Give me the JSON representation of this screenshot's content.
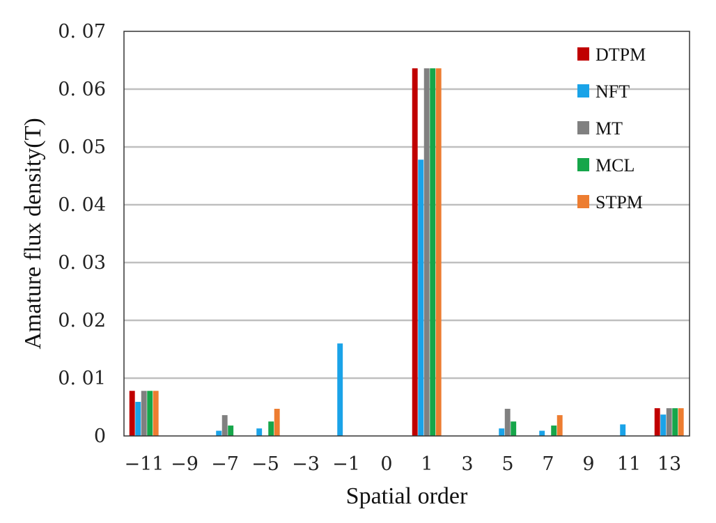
{
  "chart_data": {
    "type": "bar",
    "title": "",
    "xlabel": "Spatial order",
    "ylabel": "Amature flux density(T)",
    "categories": [
      "−11",
      "−9",
      "−7",
      "−5",
      "−3",
      "−1",
      "0",
      "1",
      "3",
      "5",
      "7",
      "9",
      "11",
      "13"
    ],
    "ylim": [
      0,
      0.07
    ],
    "yticks": [
      "0",
      "0. 01",
      "0. 02",
      "0. 03",
      "0. 04",
      "0. 05",
      "0. 06",
      "0. 07"
    ],
    "ytick_values": [
      0,
      0.01,
      0.02,
      0.03,
      0.04,
      0.05,
      0.06,
      0.07
    ],
    "grid": true,
    "legend_position": "top-right",
    "series": [
      {
        "name": "DTPM",
        "color": "#c00000",
        "values": [
          0.0078,
          0,
          0,
          0,
          0,
          0,
          0,
          0.0636,
          0,
          0,
          0,
          0,
          0,
          0.0048
        ]
      },
      {
        "name": "NFT",
        "color": "#1aa3e8",
        "values": [
          0.0059,
          0,
          0.0009,
          0.0013,
          0,
          0.016,
          0,
          0.0478,
          0,
          0.0013,
          0.0009,
          0,
          0.002,
          0.0037
        ]
      },
      {
        "name": "MT",
        "color": "#808080",
        "values": [
          0.0078,
          0,
          0.0036,
          0,
          0,
          0,
          0,
          0.0636,
          0,
          0.0047,
          0,
          0,
          0,
          0.0048
        ]
      },
      {
        "name": "MCL",
        "color": "#16a64a",
        "values": [
          0.0078,
          0,
          0.0018,
          0.0025,
          0,
          0,
          0,
          0.0636,
          0,
          0.0025,
          0.0018,
          0,
          0,
          0.0048
        ]
      },
      {
        "name": "STPM",
        "color": "#ed7d31",
        "values": [
          0.0078,
          0,
          0,
          0.0047,
          0,
          0,
          0,
          0.0636,
          0,
          0,
          0.0036,
          0,
          0,
          0.0048
        ]
      }
    ]
  }
}
